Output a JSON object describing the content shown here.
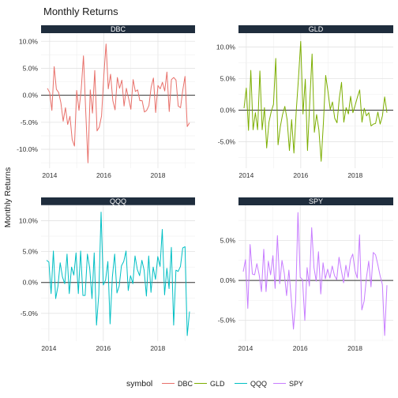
{
  "chart_data": {
    "type": "line",
    "title": "Monthly Returns",
    "ylabel": "Monthly Returns",
    "legend": {
      "title": "symbol",
      "position": "bottom"
    },
    "x_ticks": [
      "2014",
      "2016",
      "2018"
    ],
    "strip_color": "#1f2d3d",
    "panels": [
      {
        "name": "DBC",
        "color": "#E8706A",
        "ylim": [
          -13.5,
          11.5
        ],
        "y_ticks": [
          10,
          5,
          0,
          -5,
          -10
        ],
        "y_tick_labels": [
          "10.0%",
          "5.0%",
          "0.0%",
          "-5.0%",
          "-10.0%"
        ],
        "values": [
          1.3,
          0.5,
          -2.8,
          5.3,
          1.1,
          0.5,
          -1.4,
          -4.8,
          -2.3,
          -5.4,
          -3.9,
          -8.2,
          -9.4,
          0.9,
          -2.8,
          1.2,
          7.3,
          -3.1,
          -12.5,
          1.0,
          -3.3,
          4.6,
          -6.6,
          -5.9,
          -3.8,
          3.5,
          9.5,
          1.2,
          3.9,
          -1.0,
          -2.7,
          3.3,
          1.3,
          2.8,
          -2.0,
          1.3,
          -0.6,
          -2.6,
          2.9,
          0.7,
          1.0,
          -1.0,
          -1.0,
          -3.1,
          -2.8,
          -1.9,
          1.5,
          3.2,
          -3.2,
          1.8,
          1.2,
          2.4,
          0.8,
          4.3,
          -3.0,
          2.9,
          3.3,
          2.8,
          -2.0,
          -2.3,
          0.9,
          3.5,
          -5.8,
          -5.1
        ]
      },
      {
        "name": "GLD",
        "color": "#7CAE00",
        "ylim": [
          -9.2,
          12.2
        ],
        "y_ticks": [
          10,
          5,
          0,
          -5
        ],
        "y_tick_labels": [
          "10.0%",
          "5.0%",
          "0.0%",
          "-5.0%"
        ],
        "values": [
          0.3,
          3.5,
          -3.2,
          6.3,
          -3.1,
          -0.4,
          -3.1,
          6.2,
          -3.1,
          0.4,
          -6.0,
          -1.9,
          -0.2,
          0.9,
          8.2,
          -5.5,
          -2.6,
          -0.7,
          0.6,
          -1.5,
          -6.4,
          -1.5,
          -6.8,
          -0.2,
          5.1,
          10.9,
          -0.6,
          4.9,
          -6.4,
          1.4,
          8.9,
          -3.5,
          -0.7,
          -3.1,
          -8.1,
          -1.9,
          5.5,
          3.0,
          0.1,
          1.3,
          -1.3,
          -2.0,
          1.9,
          4.4,
          -1.9,
          0.4,
          -0.6,
          2.2,
          -0.4,
          0.8,
          2.1,
          3.2,
          -1.9,
          0.3,
          -0.9,
          -0.4,
          -2.5,
          -2.2,
          -2.1,
          -0.3,
          -2.2,
          -0.9,
          2.1,
          -0.4
        ]
      },
      {
        "name": "QQQ",
        "color": "#00BFC4",
        "ylim": [
          -9.5,
          12.5
        ],
        "y_ticks": [
          10,
          5,
          0,
          -5
        ],
        "y_tick_labels": [
          "10.0%",
          "5.0%",
          "0.0%",
          "-5.0%"
        ],
        "values": [
          3.6,
          3.3,
          -1.8,
          5.1,
          -2.6,
          -0.6,
          3.2,
          0.9,
          -0.2,
          4.6,
          -1.8,
          2.5,
          1.2,
          4.8,
          -1.8,
          5.1,
          -2.1,
          -2.1,
          4.6,
          2.3,
          -2.6,
          4.8,
          -6.9,
          -1.9,
          11.4,
          -0.4,
          0.4,
          3.4,
          -6.7,
          0.9,
          4.6,
          -1.7,
          -0.6,
          2.7,
          3.4,
          5.1,
          -1.3,
          1.1,
          -0.2,
          4.3,
          2.1,
          1.1,
          3.6,
          2.0,
          -2.2,
          4.3,
          -1.6,
          2.5,
          0.5,
          4.2,
          2.6,
          8.6,
          -2.0,
          2.3,
          -1.0,
          5.7,
          -6.9,
          2.0,
          1.8,
          2.6,
          5.6,
          5.8,
          -8.6,
          -4.7
        ]
      },
      {
        "name": "SPY",
        "color": "#C77CFF",
        "ylim": [
          -7.6,
          9.4
        ],
        "y_ticks": [
          5,
          0,
          -5
        ],
        "y_tick_labels": [
          "5.0%",
          "0.0%",
          "-5.0%"
        ],
        "values": [
          1.1,
          2.6,
          -3.5,
          4.5,
          0.8,
          0.7,
          2.1,
          0.7,
          -1.4,
          3.9,
          -1.4,
          2.4,
          0.7,
          3.1,
          -1.0,
          5.6,
          -0.4,
          2.5,
          0.9,
          -1.9,
          1.3,
          -2.1,
          -6.1,
          -2.6,
          8.5,
          0.4,
          0.1,
          -5.0,
          1.6,
          -0.7,
          6.6,
          1.6,
          -0.1,
          3.6,
          -1.7,
          2.2,
          0.2,
          1.4,
          0.3,
          1.8,
          0.6,
          0.1,
          2.9,
          1.3,
          -0.3,
          1.9,
          0.4,
          2.6,
          3.3,
          1.2,
          0.3,
          5.7,
          -3.7,
          -2.6,
          0.3,
          2.4,
          -0.8,
          3.5,
          3.2,
          2.0,
          0.6,
          -0.5,
          -6.9,
          -0.6
        ]
      }
    ]
  }
}
